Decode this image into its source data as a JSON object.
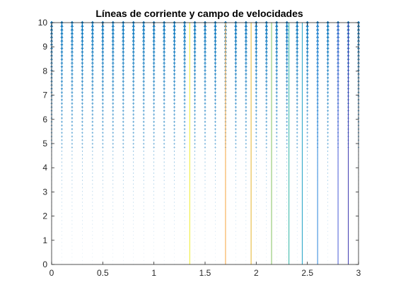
{
  "chart_data": {
    "type": "quiver+streamlines",
    "title": "Líneas de corriente y campo de velocidades",
    "xlabel": "",
    "ylabel": "",
    "xlim": [
      0,
      3
    ],
    "ylim": [
      0,
      10
    ],
    "xticks": [
      0,
      0.5,
      1,
      1.5,
      2,
      2.5,
      3
    ],
    "yticks": [
      0,
      1,
      2,
      3,
      4,
      5,
      6,
      7,
      8,
      9,
      10
    ],
    "xtick_labels": [
      "0",
      "0.5",
      "1",
      "1.5",
      "2",
      "2.5",
      "3"
    ],
    "ytick_labels": [
      "0",
      "1",
      "2",
      "3",
      "4",
      "5",
      "6",
      "7",
      "8",
      "9",
      "10"
    ],
    "grid": false,
    "box": true,
    "quiver": {
      "x_start": 0,
      "x_step": 0.1,
      "x_count": 31,
      "y_start": 0,
      "y_step": 0.15,
      "y_count": 67,
      "direction": "up",
      "color": "#0072BD"
    },
    "streamlines": [
      {
        "x": 1.35,
        "color": "#EDEC2A"
      },
      {
        "x": 1.7,
        "color": "#F7A63E"
      },
      {
        "x": 1.95,
        "color": "#E4B32B"
      },
      {
        "x": 2.15,
        "color": "#83C05F"
      },
      {
        "x": 2.32,
        "color": "#2FB5A2"
      },
      {
        "x": 2.45,
        "color": "#1FA2C7"
      },
      {
        "x": 2.6,
        "color": "#2B86DC"
      },
      {
        "x": 2.8,
        "color": "#4A5BD6"
      },
      {
        "x": 2.9,
        "color": "#3E3AB0"
      }
    ],
    "axis_color": "#262626"
  }
}
